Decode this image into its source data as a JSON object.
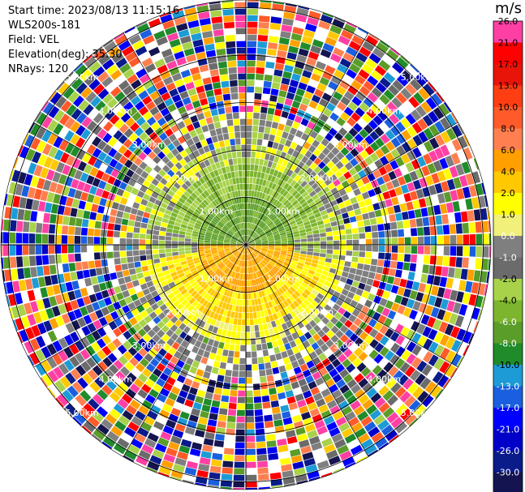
{
  "header": {
    "start_time_label": "Start time:",
    "start_time": "2023/08/13 11:15:16",
    "site": "WLS200s-181",
    "field_label": "Field:",
    "field": "VEL",
    "elevation_label": "Elevation(deg):",
    "elevation": "35.30",
    "nrays_label": "NRays:",
    "nrays": "120"
  },
  "colorbar": {
    "unit": "m/s",
    "levels": [
      {
        "label": "26.0",
        "color": "#ff3fa4"
      },
      {
        "label": "21.0",
        "color": "#ff0000"
      },
      {
        "label": "17.0",
        "color": "#e8140a"
      },
      {
        "label": "13.0",
        "color": "#ff3d13"
      },
      {
        "label": "10.0",
        "color": "#ff5a2a"
      },
      {
        "label": "8.0",
        "color": "#ff7f50"
      },
      {
        "label": "6.0",
        "color": "#ff9f00"
      },
      {
        "label": "4.0",
        "color": "#ffc800"
      },
      {
        "label": "2.0",
        "color": "#ffff00"
      },
      {
        "label": "1.0",
        "color": "#f0f07a"
      },
      {
        "label": "0.0",
        "color": "#7f7f7f"
      },
      {
        "label": "-1.0",
        "color": "#6b6b6b"
      },
      {
        "label": "-2.0",
        "color": "#a8d24a"
      },
      {
        "label": "-4.0",
        "color": "#7db52e"
      },
      {
        "label": "-6.0",
        "color": "#5a9d29"
      },
      {
        "label": "-8.0",
        "color": "#208b2a"
      },
      {
        "label": "-10.0",
        "color": "#1c9bd6"
      },
      {
        "label": "-13.0",
        "color": "#1a5fe0"
      },
      {
        "label": "-17.0",
        "color": "#0000ff"
      },
      {
        "label": "-21.0",
        "color": "#0000c8"
      },
      {
        "label": "-26.0",
        "color": "#0a1b8a"
      },
      {
        "label": "-30.0",
        "color": "#141450"
      }
    ]
  },
  "range_rings": [
    {
      "label": "1.00km"
    },
    {
      "label": "2.00km"
    },
    {
      "label": "3.00km"
    },
    {
      "label": "4.00km"
    },
    {
      "label": "5.00km"
    }
  ],
  "noise_palette": [
    "#ff3fa4",
    "#ff0000",
    "#ff7f50",
    "#ffc800",
    "#ffff00",
    "#7f7f7f",
    "#a8d24a",
    "#208b2a",
    "#1c9bd6",
    "#1a5fe0",
    "#0000ff",
    "#0000c8",
    "#0a1b8a",
    "#141450",
    "#ff5a2a",
    "#ff9f00",
    "#5a9d29",
    "#6b6b6b"
  ]
}
